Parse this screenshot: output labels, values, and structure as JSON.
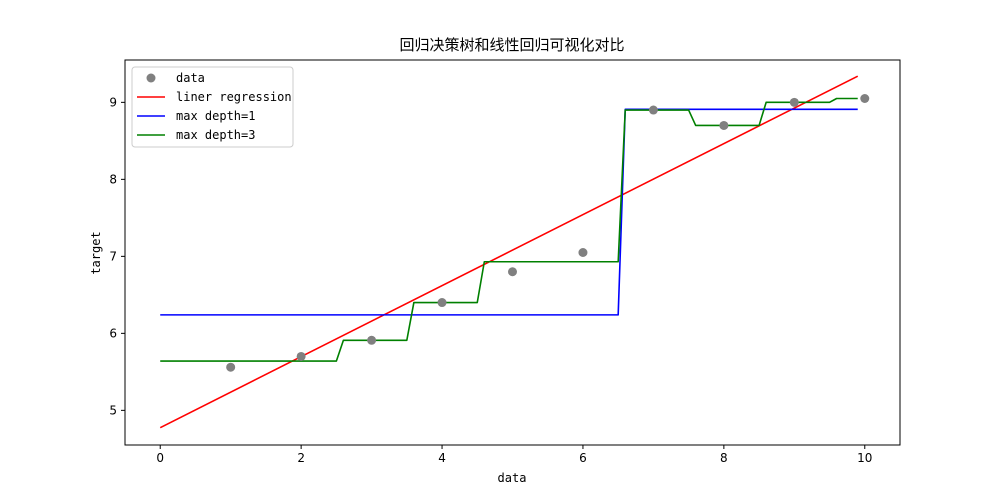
{
  "chart_data": {
    "type": "line",
    "title": "回归决策树和线性回归可视化对比",
    "xlabel": "data",
    "ylabel": "target",
    "xlim": [
      -0.5,
      10.5
    ],
    "ylim": [
      4.55,
      9.55
    ],
    "xticks": [
      0,
      2,
      4,
      6,
      8,
      10
    ],
    "yticks": [
      5,
      6,
      7,
      8,
      9
    ],
    "grid": false,
    "legend_position": "top-left",
    "scatter": {
      "name": "data",
      "color": "#808080",
      "x": [
        1,
        2,
        3,
        4,
        5,
        6,
        7,
        8,
        9,
        10
      ],
      "y": [
        5.56,
        5.7,
        5.91,
        6.4,
        6.8,
        7.05,
        8.9,
        8.7,
        9.0,
        9.05
      ]
    },
    "series": [
      {
        "name": "liner regression",
        "color": "#ff0000",
        "x": [
          0.0,
          9.9
        ],
        "y": [
          4.775,
          9.34
        ]
      },
      {
        "name": "max depth=1",
        "color": "#0000ff",
        "x": [
          0.0,
          6.5,
          6.6,
          9.9
        ],
        "y": [
          6.24,
          6.24,
          8.91,
          8.91
        ]
      },
      {
        "name": "max depth=3",
        "color": "#008000",
        "x": [
          0.0,
          2.5,
          2.6,
          3.5,
          3.6,
          4.5,
          4.6,
          6.5,
          6.6,
          7.5,
          7.6,
          8.5,
          8.6,
          9.5,
          9.6,
          9.9
        ],
        "y": [
          5.64,
          5.64,
          5.91,
          5.91,
          6.4,
          6.4,
          6.93,
          6.93,
          8.9,
          8.9,
          8.7,
          8.7,
          9.0,
          9.0,
          9.05,
          9.05
        ]
      }
    ]
  }
}
